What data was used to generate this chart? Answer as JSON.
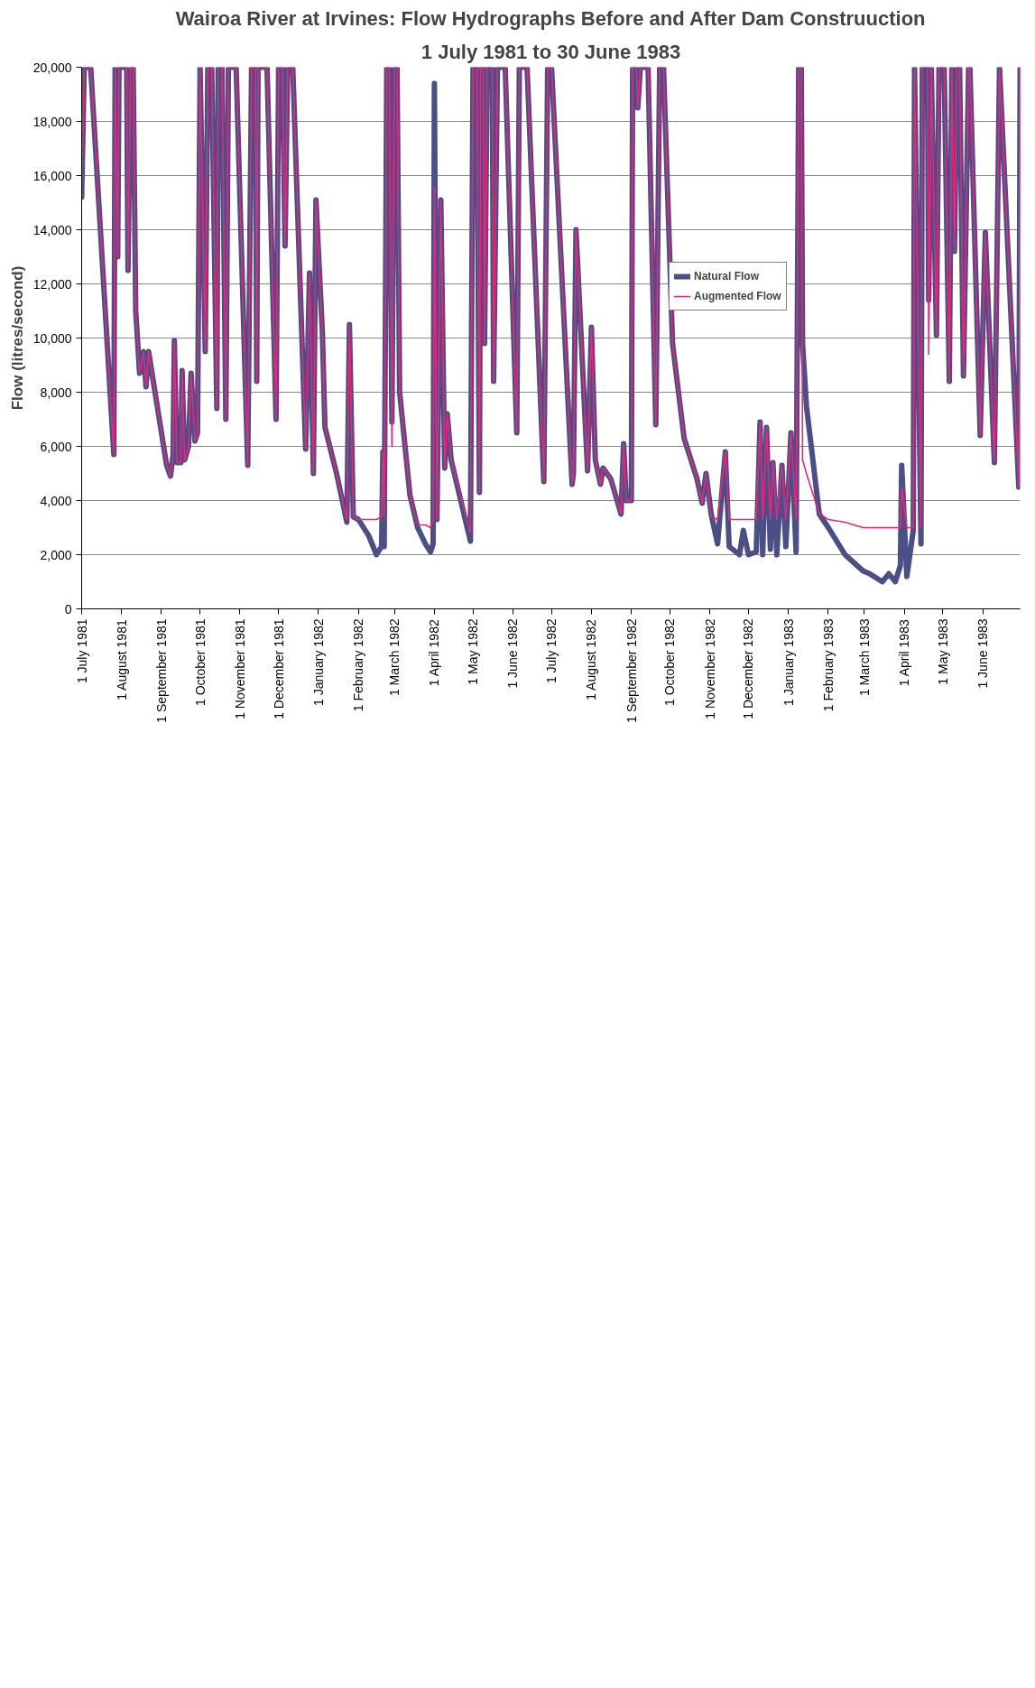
{
  "chart_data": {
    "type": "line",
    "title": "Wairoa River at Irvines: Flow Hydrographs Before and After Dam Construuction",
    "subtitle": "1 July 1981 to 30 June 1983",
    "ylabel": "Flow (litres/second)",
    "x": [
      "1981-07-01",
      "1981-07-03",
      "1981-07-08",
      "1981-07-26",
      "1981-07-27",
      "1981-07-29",
      "1981-07-30",
      "1981-08-05",
      "1981-08-06",
      "1981-08-08",
      "1981-08-10",
      "1981-08-12",
      "1981-08-15",
      "1981-08-18",
      "1981-08-20",
      "1981-08-22",
      "1981-09-05",
      "1981-09-08",
      "1981-09-10",
      "1981-09-11",
      "1981-09-13",
      "1981-09-16",
      "1981-09-17",
      "1981-09-19",
      "1981-09-22",
      "1981-09-24",
      "1981-09-27",
      "1981-09-29",
      "1981-10-01",
      "1981-10-05",
      "1981-10-07",
      "1981-10-10",
      "1981-10-14",
      "1981-10-15",
      "1981-10-18",
      "1981-10-21",
      "1981-10-23",
      "1981-10-29",
      "1981-11-07",
      "1981-11-10",
      "1981-11-13",
      "1981-11-14",
      "1981-11-15",
      "1981-11-22",
      "1981-11-29",
      "1981-12-01",
      "1981-12-04",
      "1981-12-06",
      "1981-12-08",
      "1981-12-12",
      "1981-12-22",
      "1981-12-25",
      "1981-12-28",
      "1981-12-30",
      "1982-01-04",
      "1982-01-06",
      "1982-01-15",
      "1982-01-23",
      "1982-01-25",
      "1982-01-28",
      "1982-02-01",
      "1982-02-09",
      "1982-02-15",
      "1982-02-19",
      "1982-02-20",
      "1982-02-21",
      "1982-02-23",
      "1982-02-25",
      "1982-02-27",
      "1982-03-01",
      "1982-03-03",
      "1982-03-05",
      "1982-03-13",
      "1982-03-19",
      "1982-03-25",
      "1982-03-29",
      "1982-03-31",
      "1982-04-01",
      "1982-04-03",
      "1982-04-06",
      "1982-04-09",
      "1982-04-11",
      "1982-04-14",
      "1982-04-29",
      "1982-05-01",
      "1982-05-04",
      "1982-05-06",
      "1982-05-07",
      "1982-05-09",
      "1982-05-10",
      "1982-05-12",
      "1982-05-16",
      "1982-05-17",
      "1982-05-20",
      "1982-05-26",
      "1982-06-04",
      "1982-06-06",
      "1982-06-12",
      "1982-06-25",
      "1982-06-28",
      "1982-07-01",
      "1982-07-17",
      "1982-07-18",
      "1982-07-20",
      "1982-07-29",
      "1982-08-01",
      "1982-08-04",
      "1982-08-08",
      "1982-08-10",
      "1982-08-16",
      "1982-08-24",
      "1982-08-26",
      "1982-08-28",
      "1982-09-01",
      "1982-09-02",
      "1982-09-05",
      "1982-09-06",
      "1982-09-08",
      "1982-09-14",
      "1982-09-20",
      "1982-09-23",
      "1982-09-26",
      "1982-10-03",
      "1982-10-12",
      "1982-10-22",
      "1982-10-26",
      "1982-10-29",
      "1982-11-02",
      "1982-11-07",
      "1982-11-13",
      "1982-11-16",
      "1982-11-24",
      "1982-11-27",
      "1982-12-01",
      "1982-12-07",
      "1982-12-10",
      "1982-12-12",
      "1982-12-15",
      "1982-12-18",
      "1982-12-20",
      "1982-12-23",
      "1982-12-27",
      "1982-12-30",
      "1983-01-03",
      "1983-01-07",
      "1983-01-09",
      "1983-01-11",
      "1983-01-12",
      "1983-01-15",
      "1983-01-25",
      "1983-02-01",
      "1983-02-14",
      "1983-02-28",
      "1983-03-05",
      "1983-03-15",
      "1983-03-20",
      "1983-03-25",
      "1983-03-29",
      "1983-03-30",
      "1983-04-03",
      "1983-04-08",
      "1983-04-09",
      "1983-04-14",
      "1983-04-15",
      "1983-04-19",
      "1983-04-20",
      "1983-04-22",
      "1983-04-26",
      "1983-04-28",
      "1983-05-02",
      "1983-05-06",
      "1983-05-08",
      "1983-05-10",
      "1983-05-12",
      "1983-05-14",
      "1983-05-17",
      "1983-05-21",
      "1983-05-22",
      "1983-05-30",
      "1983-06-03",
      "1983-06-10",
      "1983-06-14",
      "1983-06-29",
      "1983-06-30"
    ],
    "series": [
      {
        "name": "Natural Flow",
        "color": "#4b4f87",
        "values": [
          15200,
          20000,
          20000,
          5700,
          20000,
          13000,
          20000,
          20000,
          12500,
          20000,
          20000,
          11000,
          8700,
          9500,
          8200,
          9500,
          5300,
          4900,
          5700,
          9900,
          5400,
          5400,
          8800,
          5500,
          6000,
          8700,
          6200,
          6500,
          20000,
          9500,
          20000,
          20000,
          7400,
          20000,
          20000,
          7000,
          20000,
          20000,
          5300,
          20000,
          20000,
          8400,
          20000,
          20000,
          7000,
          20000,
          20000,
          13400,
          20000,
          20000,
          5900,
          12400,
          5000,
          15100,
          10200,
          6700,
          5000,
          3200,
          10500,
          3400,
          3300,
          2700,
          2000,
          2300,
          5800,
          2300,
          20000,
          20000,
          6900,
          20000,
          20000,
          8000,
          4200,
          3000,
          2400,
          2100,
          2400,
          19400,
          3300,
          15100,
          5200,
          7200,
          5500,
          2500,
          20000,
          20000,
          4300,
          20000,
          20000,
          9800,
          20000,
          20000,
          8400,
          20000,
          20000,
          6500,
          20000,
          20000,
          4700,
          20000,
          20000,
          4600,
          5000,
          14000,
          5100,
          10400,
          5500,
          4600,
          5200,
          4800,
          3500,
          6100,
          4000,
          4000,
          20000,
          20000,
          18500,
          20000,
          20000,
          6800,
          20000,
          20000,
          9800,
          6300,
          4800,
          3900,
          5000,
          3500,
          2400,
          5800,
          2300,
          2000,
          2900,
          2000,
          2100,
          6900,
          2000,
          6700,
          2200,
          5400,
          2000,
          5300,
          2300,
          6500,
          2100,
          20000,
          20000,
          9800,
          7500,
          3500,
          3000,
          2000,
          1400,
          1300,
          1000,
          1300,
          1000,
          1600,
          5300,
          1200,
          2900,
          20000,
          2400,
          20000,
          20000,
          11400,
          20000,
          10100,
          20000,
          20000,
          8400,
          20000,
          13200,
          20000,
          20000,
          8600,
          20000,
          20000,
          6400,
          13900,
          5400,
          20000,
          4500,
          20000
        ]
      },
      {
        "name": "Augmented Flow",
        "color": "#e8267a",
        "values": [
          15200,
          20000,
          20000,
          5700,
          20000,
          13000,
          20000,
          20000,
          12500,
          20000,
          20000,
          11000,
          8700,
          9500,
          8200,
          9500,
          5300,
          4900,
          5700,
          9900,
          5400,
          5400,
          8800,
          5500,
          6000,
          8700,
          6200,
          6500,
          20000,
          9500,
          20000,
          20000,
          7400,
          20000,
          20000,
          7000,
          20000,
          20000,
          5300,
          20000,
          20000,
          8400,
          20000,
          20000,
          7000,
          20000,
          20000,
          13400,
          20000,
          20000,
          5900,
          12400,
          5000,
          15100,
          10200,
          6700,
          5000,
          3300,
          10500,
          3400,
          3300,
          3300,
          3300,
          3400,
          5800,
          3400,
          20000,
          20000,
          6000,
          20000,
          20000,
          8000,
          4200,
          3100,
          3100,
          3000,
          3300,
          15600,
          3300,
          15100,
          5200,
          7200,
          5500,
          2800,
          20000,
          20000,
          4300,
          20000,
          20000,
          9800,
          20000,
          20000,
          8400,
          20000,
          20000,
          6500,
          20000,
          20000,
          4700,
          20000,
          20000,
          4600,
          5000,
          14000,
          5100,
          10400,
          5500,
          4600,
          5200,
          4800,
          3500,
          6100,
          4000,
          4000,
          20000,
          20000,
          18500,
          20000,
          20000,
          6800,
          20000,
          20000,
          9800,
          6300,
          4800,
          3900,
          5000,
          3400,
          3300,
          5800,
          3300,
          3300,
          3300,
          3300,
          3300,
          6900,
          3300,
          6700,
          3300,
          5400,
          3300,
          5300,
          3300,
          6500,
          3300,
          20000,
          20000,
          5500,
          5000,
          3500,
          3300,
          3200,
          3000,
          3000,
          3000,
          3000,
          3000,
          3000,
          4500,
          3000,
          3000,
          20000,
          3000,
          20000,
          20000,
          9400,
          20000,
          10100,
          20000,
          20000,
          8400,
          20000,
          13200,
          20000,
          20000,
          8600,
          20000,
          20000,
          6400,
          13900,
          5400,
          20000,
          4500,
          20000
        ]
      }
    ],
    "xlim": [
      "1981-07-01",
      "1983-06-30"
    ],
    "xticks": [
      {
        "value": "1981-07-01",
        "label": "1 July 1981"
      },
      {
        "value": "1981-08-01",
        "label": "1 August 1981"
      },
      {
        "value": "1981-09-01",
        "label": "1 September 1981"
      },
      {
        "value": "1981-10-01",
        "label": "1 October 1981"
      },
      {
        "value": "1981-11-01",
        "label": "1 November 1981"
      },
      {
        "value": "1981-12-01",
        "label": "1 December 1981"
      },
      {
        "value": "1982-01-01",
        "label": "1 January 1982"
      },
      {
        "value": "1982-02-01",
        "label": "1 February 1982"
      },
      {
        "value": "1982-03-01",
        "label": "1 March 1982"
      },
      {
        "value": "1982-04-01",
        "label": "1 April 1982"
      },
      {
        "value": "1982-05-01",
        "label": "1 May 1982"
      },
      {
        "value": "1982-06-01",
        "label": "1 June 1982"
      },
      {
        "value": "1982-07-01",
        "label": "1 July 1982"
      },
      {
        "value": "1982-08-01",
        "label": "1 August 1982"
      },
      {
        "value": "1982-09-01",
        "label": "1 September 1982"
      },
      {
        "value": "1982-10-01",
        "label": "1 October 1982"
      },
      {
        "value": "1982-11-01",
        "label": "1 November 1982"
      },
      {
        "value": "1982-12-01",
        "label": "1 December 1982"
      },
      {
        "value": "1983-01-01",
        "label": "1 January 1983"
      },
      {
        "value": "1983-02-01",
        "label": "1 February 1983"
      },
      {
        "value": "1983-03-01",
        "label": "1 March 1983"
      },
      {
        "value": "1983-04-01",
        "label": "1 April 1983"
      },
      {
        "value": "1983-05-01",
        "label": "1 May 1983"
      },
      {
        "value": "1983-06-01",
        "label": "1 June 1983"
      }
    ],
    "ylim": [
      0,
      20000
    ],
    "yticks": [
      0,
      {
        "value": 2000,
        "label": "2,000"
      },
      {
        "value": 4000,
        "label": "4,000"
      },
      {
        "value": 6000,
        "label": "6,000"
      },
      {
        "value": 8000,
        "label": "8,000"
      },
      {
        "value": 10000,
        "label": "10,000"
      },
      {
        "value": 12000,
        "label": "12,000"
      },
      {
        "value": 14000,
        "label": "14,000"
      },
      {
        "value": 16000,
        "label": "16,000"
      },
      {
        "value": 18000,
        "label": "18,000"
      },
      {
        "value": 20000,
        "label": "20,000"
      }
    ],
    "grid": "y",
    "legend": "top right"
  }
}
